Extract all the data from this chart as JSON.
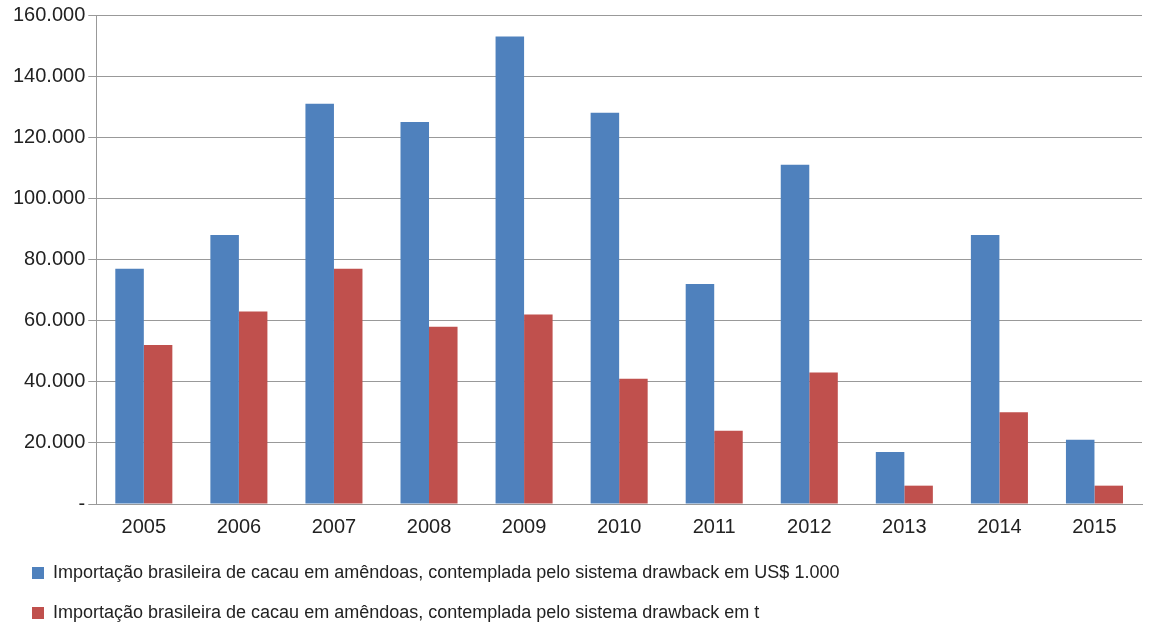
{
  "chart_data": {
    "type": "bar",
    "categories": [
      "2005",
      "2006",
      "2007",
      "2008",
      "2009",
      "2010",
      "2011",
      "2012",
      "2013",
      "2014",
      "2015"
    ],
    "series": [
      {
        "name": "Importação brasileira de cacau em amêndoas, contemplada pelo sistema drawback em US$ 1.000",
        "color": "#4f81bd",
        "values": [
          77000,
          88000,
          131000,
          125000,
          153000,
          128000,
          72000,
          111000,
          17000,
          88000,
          21000
        ]
      },
      {
        "name": "Importação brasileira de cacau em amêndoas, contemplada pelo sistema drawback em t",
        "color": "#c0504d",
        "values": [
          52000,
          63000,
          77000,
          58000,
          62000,
          41000,
          24000,
          43000,
          6000,
          30000,
          6000
        ]
      }
    ],
    "ylim": [
      0,
      160000
    ],
    "yticks": [
      {
        "value": 0,
        "label": "-"
      },
      {
        "value": 20000,
        "label": "20.000"
      },
      {
        "value": 40000,
        "label": "40.000"
      },
      {
        "value": 60000,
        "label": "60.000"
      },
      {
        "value": 80000,
        "label": "80.000"
      },
      {
        "value": 100000,
        "label": "100.000"
      },
      {
        "value": 120000,
        "label": "120.000"
      },
      {
        "value": 140000,
        "label": "140.000"
      },
      {
        "value": 160000,
        "label": "160.000"
      }
    ],
    "grid": "y",
    "legend": "bottom"
  }
}
